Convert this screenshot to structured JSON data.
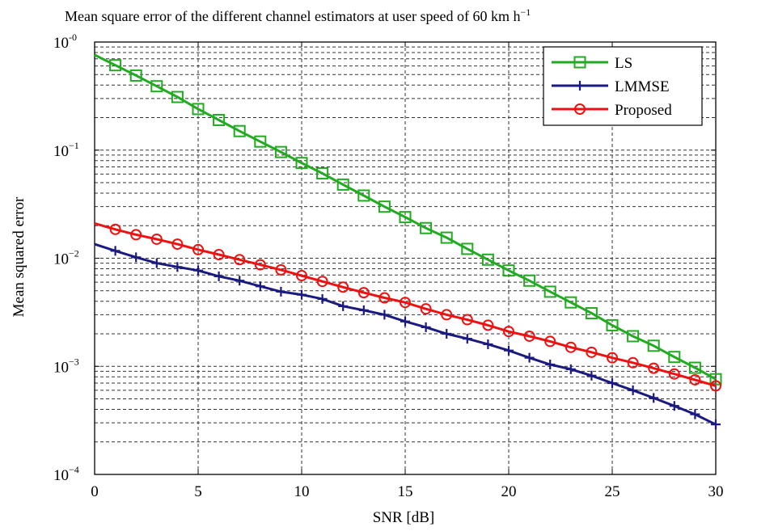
{
  "chart_data": {
    "type": "line",
    "title": "Mean square error of the different channel estimators at user speed of 60 km h",
    "title_superscript": "−1",
    "xlabel": "SNR [dB]",
    "ylabel": "Mean squared error",
    "xlim": [
      0,
      30
    ],
    "ylim": [
      0.0001,
      1
    ],
    "yscale": "log",
    "grid": true,
    "legend_position": "top-right",
    "x_ticks": [
      0,
      5,
      10,
      15,
      20,
      25,
      30
    ],
    "x_tick_labels": [
      "0",
      "5",
      "10",
      "15",
      "20",
      "25",
      "30"
    ],
    "y_ticks": [
      1,
      0.1,
      0.01,
      0.001,
      0.0001
    ],
    "y_tick_labels": [
      {
        "base": "10",
        "exp": "-0"
      },
      {
        "base": "10",
        "exp": "−1"
      },
      {
        "base": "10",
        "exp": "−2"
      },
      {
        "base": "10",
        "exp": "−3"
      },
      {
        "base": "10",
        "exp": "−4"
      }
    ],
    "x": [
      0,
      1,
      2,
      3,
      4,
      5,
      6,
      7,
      8,
      9,
      10,
      11,
      12,
      13,
      14,
      15,
      16,
      17,
      18,
      19,
      20,
      21,
      22,
      23,
      24,
      25,
      26,
      27,
      28,
      29,
      30
    ],
    "series": [
      {
        "name": "LS",
        "color": "#22aa22",
        "marker": "square",
        "values": [
          0.76,
          0.61,
          0.49,
          0.39,
          0.31,
          0.24,
          0.19,
          0.15,
          0.12,
          0.096,
          0.076,
          0.061,
          0.048,
          0.038,
          0.03,
          0.024,
          0.019,
          0.0155,
          0.0122,
          0.0097,
          0.0077,
          0.0062,
          0.0049,
          0.0039,
          0.0031,
          0.0024,
          0.0019,
          0.00155,
          0.00122,
          0.00097,
          0.00076
        ]
      },
      {
        "name": "LMMSE",
        "color": "#1a1a80",
        "marker": "plus",
        "values": [
          0.0135,
          0.0117,
          0.0102,
          0.009,
          0.0083,
          0.0077,
          0.0068,
          0.0062,
          0.0055,
          0.0049,
          0.0046,
          0.0042,
          0.0036,
          0.0033,
          0.003,
          0.0026,
          0.0023,
          0.002,
          0.0018,
          0.0016,
          0.0014,
          0.0012,
          0.00104,
          0.00094,
          0.00082,
          0.0007,
          0.0006,
          0.00051,
          0.00043,
          0.00036,
          0.00029
        ]
      },
      {
        "name": "Proposed",
        "color": "#ee1111",
        "marker": "circle",
        "values": [
          0.021,
          0.0185,
          0.0165,
          0.015,
          0.0135,
          0.012,
          0.0108,
          0.0097,
          0.0087,
          0.0078,
          0.0069,
          0.0061,
          0.0054,
          0.0048,
          0.0043,
          0.0039,
          0.0034,
          0.003,
          0.0027,
          0.0024,
          0.0021,
          0.0019,
          0.0017,
          0.0015,
          0.00135,
          0.0012,
          0.00108,
          0.00096,
          0.00085,
          0.00075,
          0.00066
        ]
      }
    ]
  }
}
